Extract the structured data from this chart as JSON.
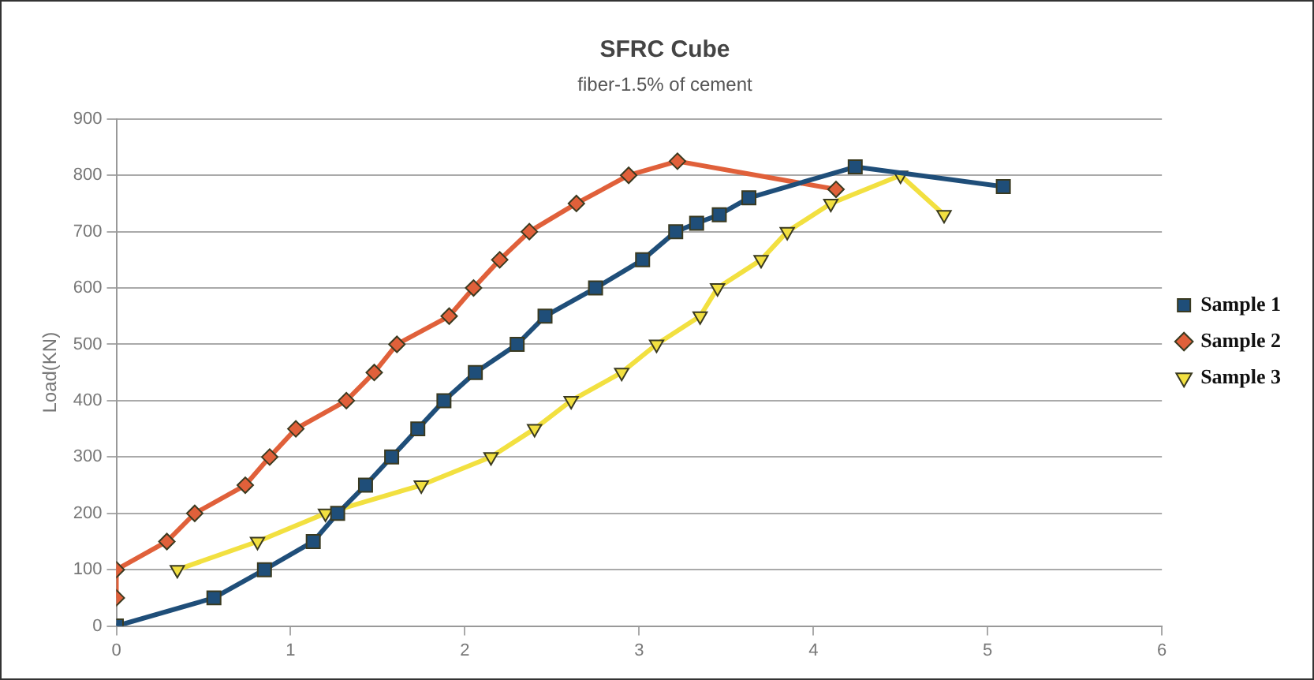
{
  "chart_data": {
    "type": "line",
    "title": "SFRC Cube",
    "subtitle": "fiber-1.5% of cement",
    "ylabel": "Load(KN)",
    "xlim": [
      0,
      6
    ],
    "xticks": [
      0,
      1,
      2,
      3,
      4,
      5,
      6
    ],
    "ylim": [
      0,
      900
    ],
    "yticks": [
      0,
      100,
      200,
      300,
      400,
      500,
      600,
      700,
      800,
      900
    ],
    "grid": "y",
    "legend": "right",
    "line_style": "solid",
    "series": [
      {
        "name": "Sample 1",
        "color": "#1f4e79",
        "marker": "square",
        "x": [
          0,
          0.56,
          0.85,
          1.13,
          1.27,
          1.43,
          1.58,
          1.73,
          1.88,
          2.06,
          2.3,
          2.46,
          2.75,
          3.02,
          3.21,
          3.33,
          3.46,
          3.63,
          4.24,
          5.09
        ],
        "values": [
          0,
          50,
          100,
          150,
          200,
          250,
          300,
          350,
          400,
          450,
          500,
          550,
          600,
          650,
          700,
          715,
          730,
          760,
          815,
          780
        ]
      },
      {
        "name": "Sample 2",
        "color": "#e0603a",
        "marker": "diamond",
        "x": [
          0,
          0,
          0.29,
          0.45,
          0.74,
          0.88,
          1.03,
          1.32,
          1.48,
          1.61,
          1.91,
          2.05,
          2.2,
          2.37,
          2.64,
          2.94,
          3.22,
          4.13
        ],
        "values": [
          50,
          100,
          150,
          200,
          250,
          300,
          350,
          400,
          450,
          500,
          550,
          600,
          650,
          700,
          750,
          800,
          825,
          775
        ]
      },
      {
        "name": "Sample 3",
        "color": "#f2e040",
        "marker": "triangle",
        "x": [
          0.35,
          0.81,
          1.2,
          1.75,
          2.15,
          2.4,
          2.61,
          2.9,
          3.1,
          3.35,
          3.45,
          3.7,
          3.85,
          4.1,
          4.5,
          4.75
        ],
        "values": [
          100,
          150,
          200,
          250,
          300,
          350,
          400,
          450,
          500,
          550,
          600,
          650,
          700,
          750,
          800,
          730
        ]
      }
    ]
  }
}
